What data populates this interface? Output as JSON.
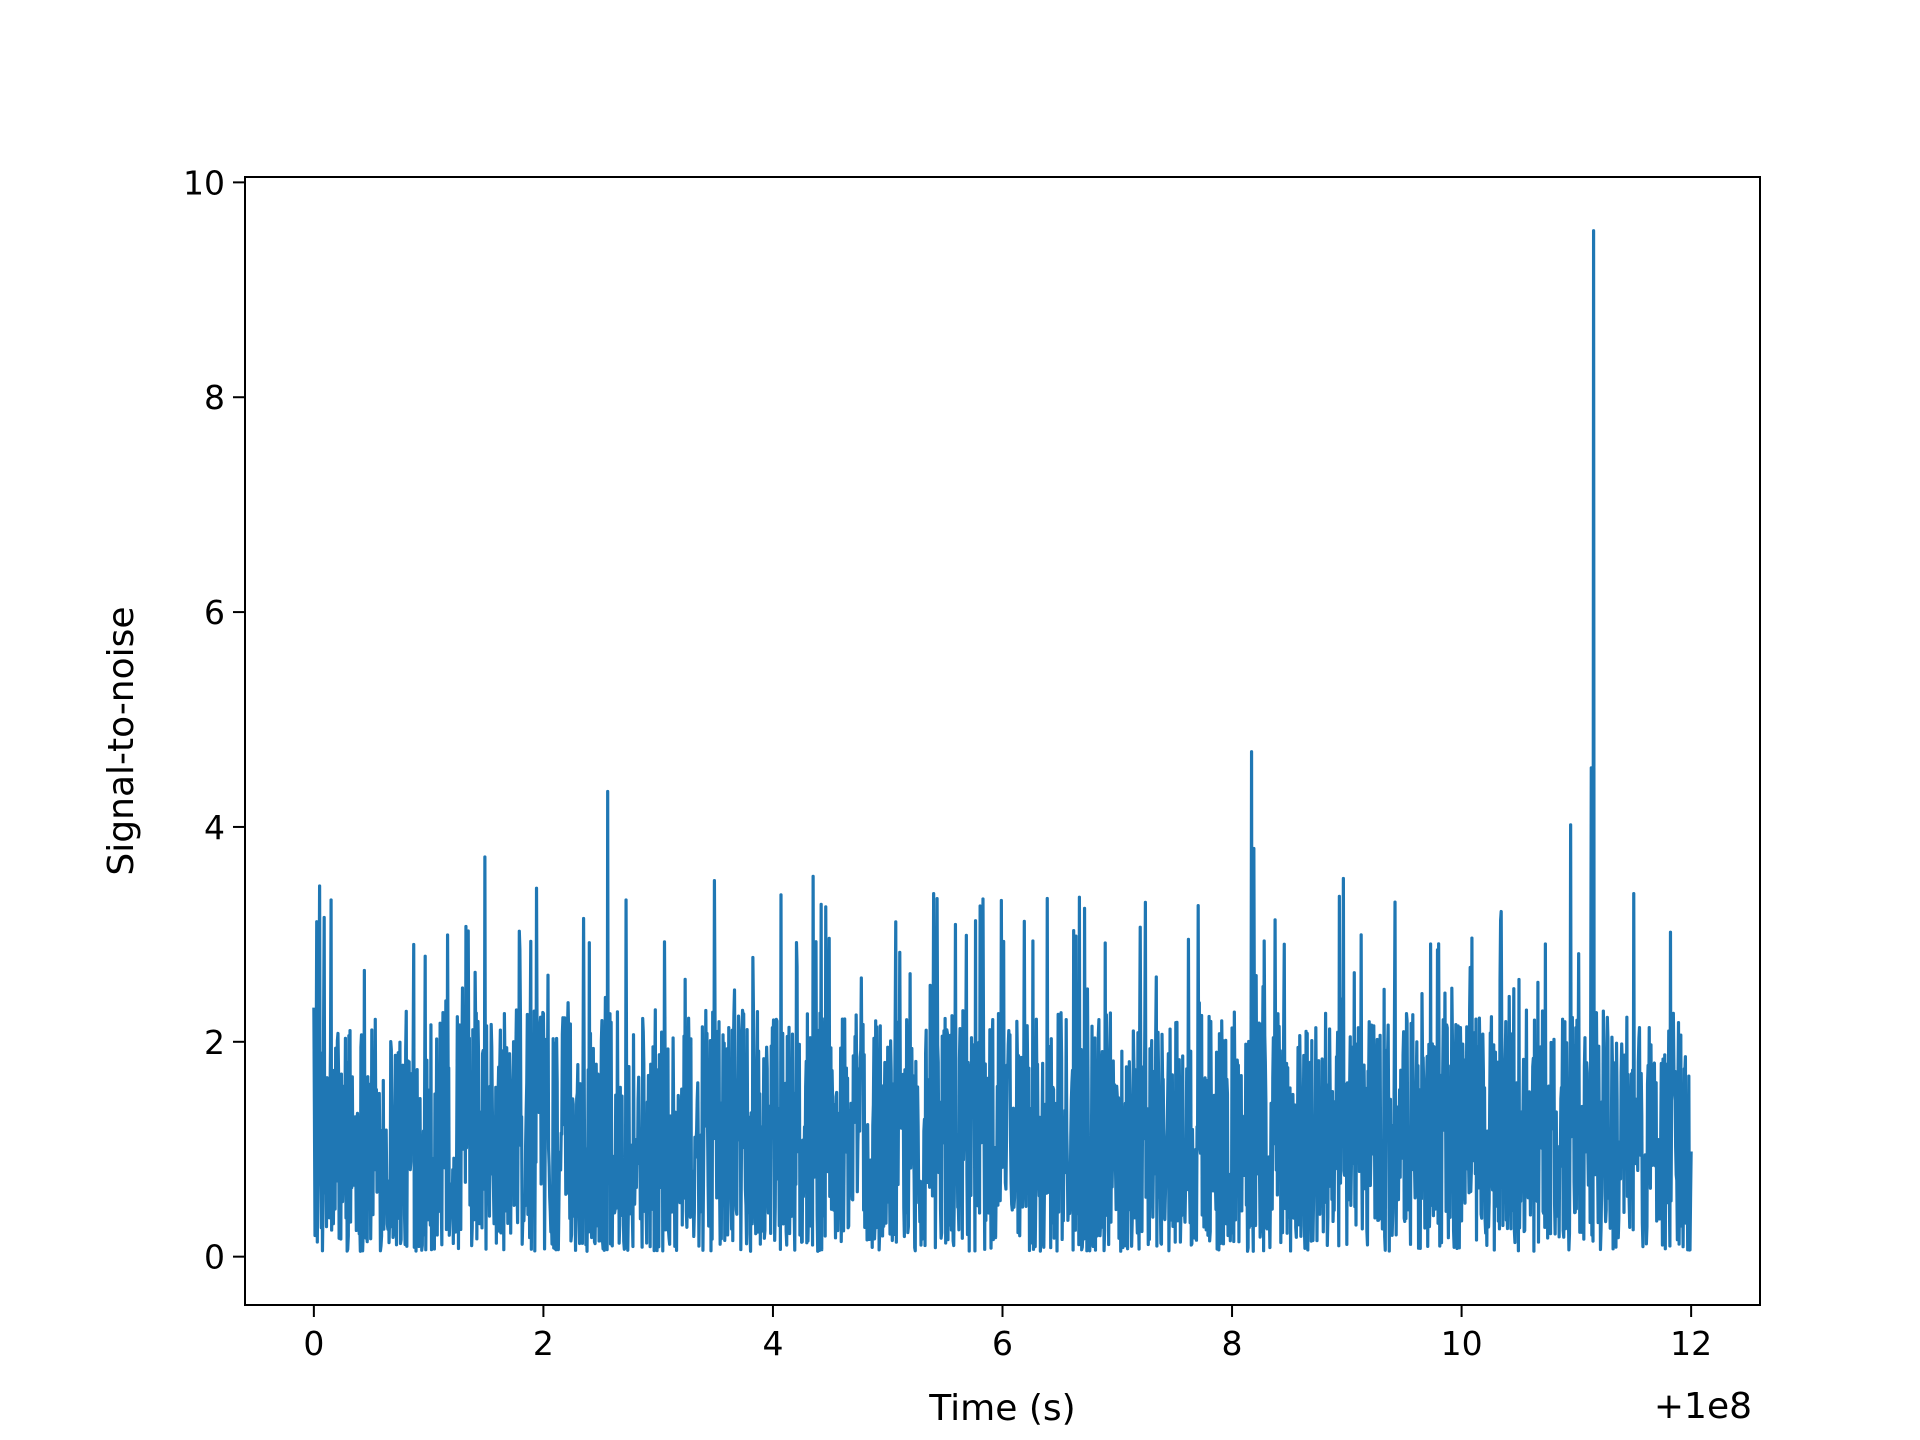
{
  "chart_data": {
    "type": "line",
    "title": "",
    "xlabel": "Time (s)",
    "ylabel": "Signal-to-noise",
    "x_offset_label": "+1e8",
    "xlim": [
      -0.6,
      12.6
    ],
    "ylim": [
      -0.45,
      10.05
    ],
    "x_ticks": [
      0,
      2,
      4,
      6,
      8,
      10,
      12
    ],
    "x_tick_labels": [
      "0",
      "2",
      "4",
      "6",
      "8",
      "10",
      "12"
    ],
    "y_ticks": [
      0,
      2,
      4,
      6,
      8,
      10
    ],
    "y_tick_labels": [
      "0",
      "2",
      "4",
      "6",
      "8",
      "10"
    ],
    "grid": false,
    "legend": null,
    "x_range": [
      0,
      12
    ],
    "colors": {
      "series": "#1f77b4",
      "axes": "#000000",
      "background": "#ffffff"
    },
    "series": [
      {
        "color": "#1f77b4",
        "baseline_range": [
          0.05,
          3.4
        ],
        "peaks": [
          {
            "x": 0.05,
            "y": 3.45
          },
          {
            "x": 0.15,
            "y": 3.32
          },
          {
            "x": 1.49,
            "y": 3.72
          },
          {
            "x": 1.94,
            "y": 3.43
          },
          {
            "x": 2.56,
            "y": 4.33
          },
          {
            "x": 2.72,
            "y": 3.32
          },
          {
            "x": 3.49,
            "y": 3.5
          },
          {
            "x": 4.35,
            "y": 3.54
          },
          {
            "x": 5.4,
            "y": 3.38
          },
          {
            "x": 5.83,
            "y": 3.33
          },
          {
            "x": 8.17,
            "y": 4.7
          },
          {
            "x": 8.19,
            "y": 3.8
          },
          {
            "x": 8.97,
            "y": 3.52
          },
          {
            "x": 9.42,
            "y": 3.3
          },
          {
            "x": 10.95,
            "y": 4.02
          },
          {
            "x": 11.13,
            "y": 4.55
          },
          {
            "x": 11.15,
            "y": 9.55
          },
          {
            "x": 11.5,
            "y": 3.38
          },
          {
            "x": 11.82,
            "y": 3.02
          }
        ]
      }
    ]
  }
}
